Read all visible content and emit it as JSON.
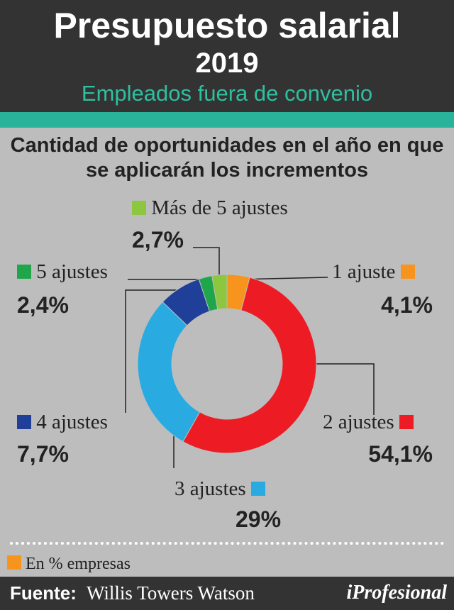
{
  "header": {
    "title": "Presupuesto salarial",
    "year": "2019",
    "subtitle": "Empleados fuera de convenio"
  },
  "chart_data": {
    "type": "pie",
    "title": "Cantidad de oportunidades en el año en que se aplicarán los incrementos",
    "unit_legend": "En % empresas",
    "slices": [
      {
        "label": "1 ajuste",
        "value": 4.1,
        "display": "4,1%",
        "color": "#f7941d"
      },
      {
        "label": "2 ajustes",
        "value": 54.1,
        "display": "54,1%",
        "color": "#ed1c24"
      },
      {
        "label": "3 ajustes",
        "value": 29,
        "display": "29%",
        "color": "#29abe2"
      },
      {
        "label": "4 ajustes",
        "value": 7.7,
        "display": "7,7%",
        "color": "#1f3f99"
      },
      {
        "label": "5 ajustes",
        "value": 2.4,
        "display": "2,4%",
        "color": "#1fa64a"
      },
      {
        "label": "Más de 5 ajustes",
        "value": 2.7,
        "display": "2,7%",
        "color": "#8dc63f"
      }
    ]
  },
  "legend_color": "#f7941d",
  "footer": {
    "label": "Fuente:",
    "source": "Willis Towers Watson",
    "brand": "iProfesional"
  }
}
